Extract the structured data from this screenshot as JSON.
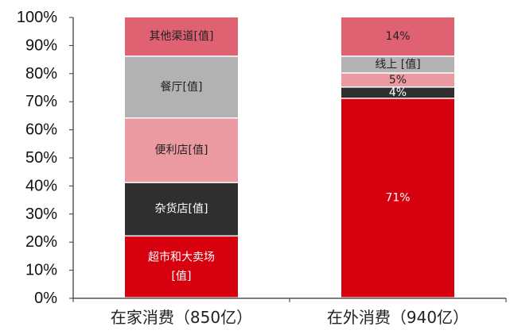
{
  "chart_data": {
    "type": "bar",
    "stacked": true,
    "categories": [
      "在家消费（850亿）",
      "在外消费（940亿）"
    ],
    "ylim": [
      0,
      100
    ],
    "yticks": [
      "0%",
      "10%",
      "20%",
      "30%",
      "40%",
      "50%",
      "60%",
      "70%",
      "80%",
      "90%",
      "100%"
    ],
    "grid": false,
    "series": [
      {
        "name": "超市和大卖场",
        "color": "#d7000f",
        "text_color": "#ffffff",
        "values": [
          22,
          71
        ],
        "labels": [
          "超市和大卖场\n[值]",
          "71%"
        ]
      },
      {
        "name": "杂货店",
        "color": "#2f2f2f",
        "text_color": "#ffffff",
        "values": [
          19,
          4
        ],
        "labels": [
          "杂货店[值]",
          "4%"
        ]
      },
      {
        "name": "便利店",
        "color": "#ec9aa1",
        "text_color": "#222222",
        "values": [
          23,
          5
        ],
        "labels": [
          "便利店[值]",
          "5%"
        ]
      },
      {
        "name": "餐厅/线上",
        "color": "#b2b2b2",
        "text_color": "#222222",
        "values": [
          22,
          6
        ],
        "labels": [
          "餐厅[值]",
          "线上 [值]"
        ]
      },
      {
        "name": "其他渠道",
        "color": "#e06272",
        "text_color": "#222222",
        "values": [
          14,
          14
        ],
        "labels": [
          "其他渠道[值]",
          "14%"
        ]
      }
    ]
  }
}
